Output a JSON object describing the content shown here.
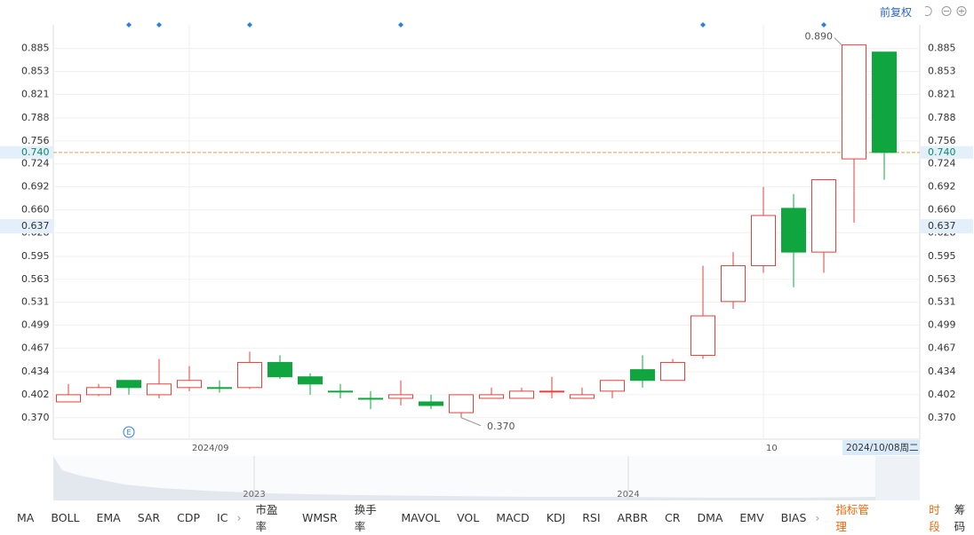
{
  "header": {
    "adjust_mode": "前复权"
  },
  "chart_data": {
    "type": "candlestick",
    "categories": [
      null,
      null,
      null,
      null,
      "2024/09",
      null,
      null,
      null,
      null,
      null,
      null,
      null,
      null,
      null,
      null,
      null,
      null,
      null,
      null,
      null,
      null,
      null,
      null,
      "10",
      null,
      null,
      null,
      null
    ],
    "series": [
      {
        "up_color": "#e5413c",
        "down_color": "#10a53f",
        "open": [
          0.392,
          0.402,
          0.422,
          0.402,
          0.412,
          0.412,
          0.412,
          0.447,
          0.427,
          0.407,
          0.397,
          0.397,
          0.392,
          0.377,
          0.397,
          0.397,
          0.407,
          0.397,
          0.407,
          0.437,
          0.422,
          0.457,
          0.532,
          0.582,
          0.662,
          0.601,
          0.731,
          0.88
        ],
        "high": [
          0.417,
          0.417,
          0.422,
          0.452,
          0.442,
          0.422,
          0.462,
          0.457,
          0.432,
          0.417,
          0.407,
          0.422,
          0.402,
          0.402,
          0.412,
          0.412,
          0.427,
          0.412,
          0.422,
          0.457,
          0.452,
          0.582,
          0.601,
          0.692,
          0.682,
          0.702,
          0.89,
          0.88
        ],
        "low": [
          0.392,
          0.4,
          0.402,
          0.397,
          0.407,
          0.405,
          0.41,
          0.424,
          0.402,
          0.397,
          0.382,
          0.387,
          0.382,
          0.37,
          0.397,
          0.397,
          0.397,
          0.397,
          0.397,
          0.412,
          0.422,
          0.452,
          0.522,
          0.572,
          0.552,
          0.572,
          0.642,
          0.702
        ],
        "close": [
          0.402,
          0.412,
          0.412,
          0.417,
          0.422,
          0.412,
          0.447,
          0.427,
          0.417,
          0.407,
          0.397,
          0.402,
          0.387,
          0.402,
          0.402,
          0.407,
          0.407,
          0.402,
          0.422,
          0.422,
          0.447,
          0.512,
          0.582,
          0.652,
          0.601,
          0.702,
          0.89,
          0.74
        ],
        "high_labels": [
          null,
          null,
          null,
          null,
          null,
          null,
          null,
          null,
          null,
          null,
          null,
          null,
          null,
          null,
          null,
          null,
          null,
          null,
          null,
          null,
          null,
          null,
          null,
          null,
          null,
          null,
          "0.890",
          null
        ],
        "low_labels": [
          null,
          null,
          null,
          null,
          null,
          null,
          null,
          null,
          null,
          null,
          null,
          null,
          null,
          "0.370",
          null,
          null,
          null,
          null,
          null,
          null,
          null,
          null,
          null,
          null,
          null,
          null,
          null,
          null
        ]
      }
    ],
    "ylim": [
      0.34,
      0.918
    ],
    "yticks": [
      {
        "value": 0.37,
        "label": "0.370"
      },
      0.402,
      0.434,
      0.467,
      0.499,
      0.531,
      0.563,
      0.595,
      0.628,
      {
        "value": 0.66,
        "label": "0.660"
      },
      0.692,
      0.724,
      0.756,
      0.788,
      0.821,
      0.853,
      0.885
    ],
    "last_price": {
      "value": 0.74,
      "label": "0.740",
      "color": "#d9a040"
    },
    "crosshair": {
      "value": 0.637,
      "date_label": "2024/10/08周二"
    },
    "event_marker": "E",
    "grid": true
  },
  "navigator": {
    "labels": [
      "2023",
      "2024"
    ]
  },
  "toolbar": {
    "indicators": [
      "MA",
      "BOLL",
      "EMA",
      "SAR",
      "CDP",
      "IC",
      "市盈率",
      "WMSR",
      "换手率",
      "MAVOL",
      "VOL",
      "MACD",
      "KDJ",
      "RSI",
      "ARBR",
      "CR",
      "DMA",
      "EMV",
      "BIAS"
    ],
    "manage": "指标管理",
    "period": "时段",
    "chips": "筹码"
  }
}
